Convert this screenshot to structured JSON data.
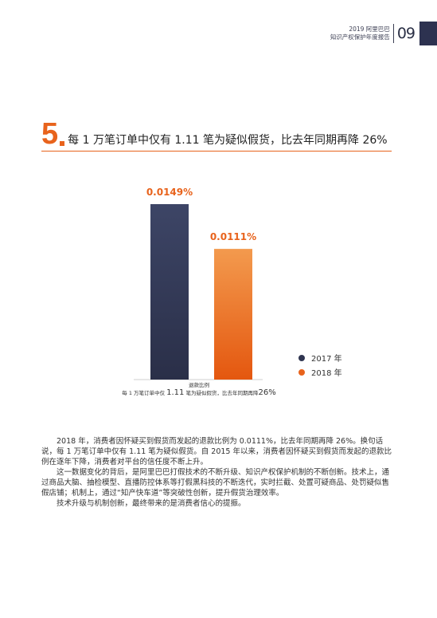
{
  "header": {
    "line1": "2019 阿里巴巴",
    "line2": "知识产权保护年度报告",
    "page_number": "09"
  },
  "section": {
    "number": "5",
    "title": "每 1 万笔订单中仅有 1.11 笔为疑似假货，比去年同期再降 26%"
  },
  "chart_data": {
    "type": "bar",
    "categories": [
      "2017 年",
      "2018 年"
    ],
    "values": [
      0.0149,
      0.0111
    ],
    "value_labels": [
      "0.0149%",
      "0.0111%"
    ],
    "colors": [
      "#2f3550",
      "#e8631c"
    ],
    "legend": [
      "2017 年",
      "2018 年"
    ],
    "legend_position": "right",
    "ylim": [
      0,
      0.0149
    ],
    "xlabel": "退款比例",
    "footer_prefix": "每 1 万笔订单中仅",
    "footer_value": "1.11",
    "footer_mid": "笔为疑似假货，比去年同期再降",
    "footer_pct": "26%"
  },
  "body": {
    "p1": "2018 年，消费者因怀疑买到假货而发起的退款比例为 0.0111%，比去年同期再降 26%。换句话说，每 1 万笔订单中仅有 1.11 笔为疑似假货。自 2015 年以来，消费者因怀疑买到假货而发起的退款比例在逐年下降，消费者对平台的信任度不断上升。",
    "p2": "这一数据变化的背后，是阿里巴巴打假技术的不断升级、知识产权保护机制的不断创新。技术上，通过商品大脑、抽检模型、直播防控体系等打假黑科技的不断迭代，实时拦截、处置可疑商品、处罚疑似售假店铺；机制上，通过“知产快车道”等突破性创新，提升假货治理效率。",
    "p3": "技术升级与机制创新，最终带来的是消费者信心的提振。"
  }
}
